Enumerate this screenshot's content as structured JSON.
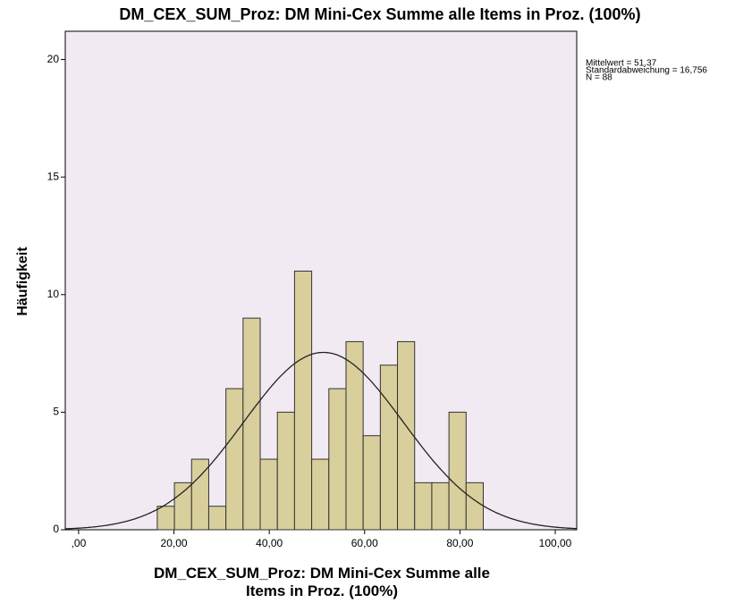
{
  "chart_data": {
    "type": "histogram",
    "title": "DM_CEX_SUM_Proz: DM Mini-Cex Summe alle Items in Proz. (100%)",
    "x_label": "DM_CEX_SUM_Proz: DM Mini-Cex Summe alle Items in Proz. (100%)",
    "y_label": "Häufigkeit",
    "bins": [
      16.5,
      20.1,
      23.7,
      27.3,
      30.9,
      34.5,
      38.1,
      41.7,
      45.3,
      48.9,
      52.5,
      56.1,
      59.7,
      63.3,
      66.9,
      70.5,
      74.1,
      77.7,
      81.3,
      84.9
    ],
    "values": [
      1,
      2,
      3,
      1,
      6,
      9,
      3,
      5,
      11,
      3,
      6,
      8,
      4,
      7,
      8,
      2,
      2,
      5,
      2
    ],
    "color": "#d9cf9c",
    "xlim": [
      -2.8,
      104.5
    ],
    "xticks": [
      {
        "value": 0,
        "label": ",00"
      },
      {
        "value": 20,
        "label": "20,00"
      },
      {
        "value": 40,
        "label": "40,00"
      },
      {
        "value": 60,
        "label": "60,00"
      },
      {
        "value": 80,
        "label": "80,00"
      },
      {
        "value": 100,
        "label": "100,00"
      }
    ],
    "ylim": [
      0,
      21.2
    ],
    "yticks": [
      0,
      5,
      10,
      15,
      20
    ],
    "stats": [
      {
        "label": "Mittelwert = 51,37",
        "value": 51.37
      },
      {
        "label": "Standardabweichung = 16,756",
        "value": 16.756
      },
      {
        "label": "N = 88",
        "value": 88
      }
    ]
  }
}
